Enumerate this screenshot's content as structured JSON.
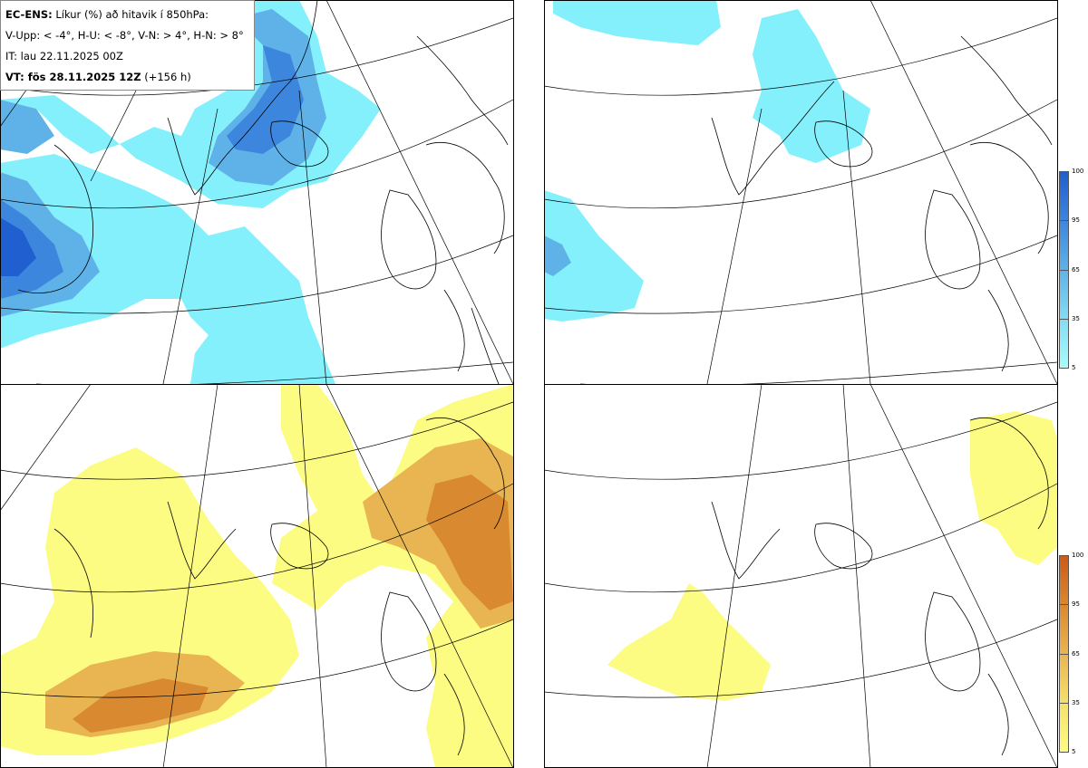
{
  "header": {
    "line1_bold": "EC-ENS:",
    "line1_rest": " Líkur (%) að hitavik í 850hPa:",
    "line2": "V-Upp: < -4°, H-U: < -8°, V-N: > 4°, H-N: > 8°",
    "line3": "IT: lau 22.11.2025 00Z",
    "line4_bold": "VT: fös 28.11.2025 12Z",
    "line4_rest": " (+156 h)"
  },
  "colorbars": {
    "cold": {
      "ticks": [
        "100",
        "95",
        "65",
        "35",
        "5"
      ],
      "colors": [
        "#1f5fd0",
        "#3d86de",
        "#5fb2e8",
        "#84dcf0",
        "#a8fcfd"
      ]
    },
    "warm": {
      "ticks": [
        "100",
        "95",
        "65",
        "35",
        "5"
      ],
      "colors": [
        "#cc5a1a",
        "#d9892f",
        "#e8b552",
        "#f5e06a",
        "#fdfc82"
      ]
    }
  },
  "panels": [
    {
      "id": "cold-4",
      "label": "V-Upp"
    },
    {
      "id": "cold-8",
      "label": "H-U"
    },
    {
      "id": "warm-4",
      "label": "V-N"
    },
    {
      "id": "warm-8",
      "label": "H-N"
    }
  ]
}
